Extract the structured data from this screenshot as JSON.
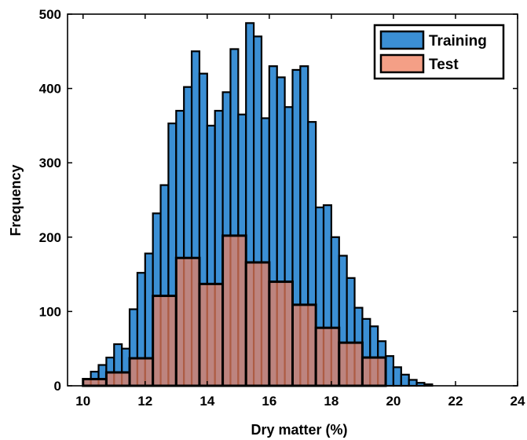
{
  "chart_data": {
    "type": "bar",
    "subtype": "overlaid-histogram",
    "xlabel": "Dry matter (%)",
    "ylabel": "Frequency",
    "xlim": [
      9.5,
      24
    ],
    "ylim": [
      0,
      500
    ],
    "xticks": [
      10,
      12,
      14,
      16,
      18,
      20,
      22,
      24
    ],
    "yticks": [
      0,
      100,
      200,
      300,
      400,
      500
    ],
    "legend_position": "top-right",
    "series": [
      {
        "name": "Training",
        "color": "#3b8fd4",
        "bin_width": 0.25,
        "bin_start": 10.0,
        "values": [
          9,
          19,
          28,
          38,
          56,
          50,
          103,
          152,
          178,
          232,
          270,
          353,
          370,
          402,
          450,
          420,
          350,
          370,
          395,
          453,
          365,
          488,
          470,
          360,
          430,
          415,
          375,
          425,
          430,
          355,
          240,
          243,
          200,
          175,
          145,
          105,
          90,
          80,
          60,
          40,
          25,
          15,
          8,
          4,
          2
        ]
      },
      {
        "name": "Test",
        "color": "#f07f5e",
        "bin_width": 0.75,
        "bin_start": 10.0,
        "values": [
          9,
          18,
          37,
          121,
          172,
          137,
          202,
          166,
          140,
          109,
          78,
          58,
          38
        ]
      }
    ]
  },
  "legend": {
    "training_label": "Training",
    "test_label": "Test"
  }
}
